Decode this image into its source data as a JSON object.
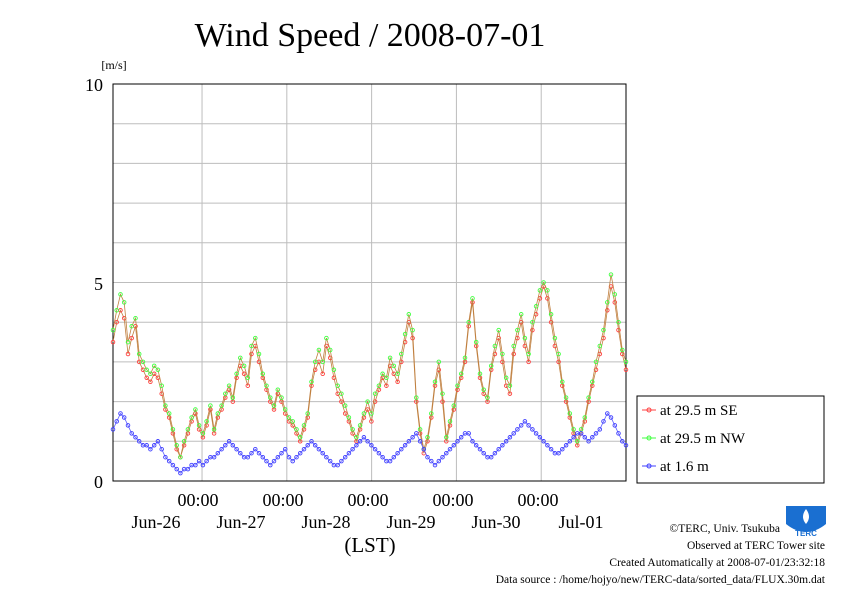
{
  "chart_data": {
    "type": "line",
    "title": "Wind Speed / 2008-07-01",
    "ylabel": "[m/s]",
    "xlabel": "(LST)",
    "ylim": [
      0,
      10
    ],
    "yticks": [
      "0",
      "5",
      "10"
    ],
    "xticks": [
      "00:00",
      "00:00",
      "00:00",
      "00:00",
      "00:00"
    ],
    "x_day_labels": [
      "Jun-26",
      "Jun-27",
      "Jun-28",
      "Jun-29",
      "Jun-30",
      "Jul-01"
    ],
    "x_range_days": [
      -1.05,
      5.0
    ],
    "grid": true,
    "legend_position": "bottom-right, outside plot",
    "x_unit": "days from 2008-06-26 00:00 LST (hourly samples)",
    "series": [
      {
        "name": "at 29.5 m SE",
        "color": "#ff4040",
        "values": [
          3.5,
          4.0,
          4.3,
          4.1,
          3.2,
          3.6,
          3.9,
          3.0,
          2.8,
          2.6,
          2.5,
          2.7,
          2.6,
          2.2,
          1.8,
          1.6,
          1.2,
          0.8,
          0.6,
          0.9,
          1.2,
          1.5,
          1.7,
          1.3,
          1.1,
          1.4,
          1.8,
          1.2,
          1.6,
          1.8,
          2.1,
          2.3,
          2.0,
          2.6,
          2.9,
          2.7,
          2.4,
          3.2,
          3.4,
          3.0,
          2.6,
          2.3,
          2.0,
          1.8,
          2.2,
          2.0,
          1.7,
          1.5,
          1.4,
          1.2,
          1.0,
          1.3,
          1.6,
          2.4,
          2.8,
          3.0,
          2.7,
          3.4,
          3.1,
          2.6,
          2.2,
          2.0,
          1.7,
          1.5,
          1.2,
          1.0,
          1.3,
          1.6,
          1.8,
          1.5,
          2.0,
          2.3,
          2.6,
          2.4,
          2.9,
          2.7,
          2.5,
          3.0,
          3.5,
          4.0,
          3.6,
          2.0,
          1.2,
          0.7,
          1.0,
          1.6,
          2.4,
          2.8,
          2.0,
          1.0,
          1.4,
          1.8,
          2.3,
          2.6,
          3.0,
          3.9,
          4.5,
          3.4,
          2.6,
          2.2,
          2.0,
          2.8,
          3.2,
          3.6,
          3.0,
          2.4,
          2.2,
          3.2,
          3.6,
          4.0,
          3.4,
          3.0,
          3.8,
          4.2,
          4.6,
          4.9,
          4.6,
          4.0,
          3.4,
          3.0,
          2.4,
          2.0,
          1.6,
          1.2,
          0.9,
          1.2,
          1.5,
          2.0,
          2.4,
          2.8,
          3.2,
          3.6,
          4.3,
          4.9,
          4.5,
          3.8,
          3.2,
          2.8
        ]
      },
      {
        "name": "at 29.5 m NW",
        "color": "#40ff40",
        "values": [
          3.8,
          4.3,
          4.7,
          4.5,
          3.5,
          3.9,
          4.1,
          3.2,
          3.0,
          2.8,
          2.7,
          2.9,
          2.8,
          2.4,
          1.9,
          1.7,
          1.3,
          0.9,
          0.6,
          1.0,
          1.3,
          1.6,
          1.8,
          1.4,
          1.2,
          1.5,
          1.9,
          1.3,
          1.7,
          1.9,
          2.2,
          2.4,
          2.1,
          2.7,
          3.1,
          2.9,
          2.6,
          3.4,
          3.6,
          3.2,
          2.7,
          2.4,
          2.1,
          1.9,
          2.3,
          2.1,
          1.8,
          1.6,
          1.5,
          1.3,
          1.1,
          1.4,
          1.7,
          2.5,
          3.0,
          3.3,
          3.0,
          3.6,
          3.3,
          2.8,
          2.4,
          2.2,
          1.9,
          1.6,
          1.3,
          1.1,
          1.4,
          1.7,
          2.0,
          1.7,
          2.2,
          2.4,
          2.7,
          2.6,
          3.1,
          2.9,
          2.7,
          3.2,
          3.7,
          4.2,
          3.8,
          2.1,
          1.3,
          0.8,
          1.1,
          1.7,
          2.5,
          3.0,
          2.2,
          1.1,
          1.5,
          1.9,
          2.4,
          2.7,
          3.1,
          4.0,
          4.6,
          3.5,
          2.7,
          2.3,
          2.1,
          2.9,
          3.4,
          3.8,
          3.2,
          2.6,
          2.4,
          3.4,
          3.8,
          4.2,
          3.6,
          3.2,
          4.0,
          4.4,
          4.8,
          5.0,
          4.8,
          4.2,
          3.6,
          3.2,
          2.5,
          2.1,
          1.7,
          1.3,
          1.0,
          1.3,
          1.6,
          2.1,
          2.5,
          3.0,
          3.4,
          3.8,
          4.5,
          5.2,
          4.7,
          4.0,
          3.3,
          3.0
        ]
      },
      {
        "name": "at 1.6 m",
        "color": "#4040ff",
        "values": [
          1.3,
          1.5,
          1.7,
          1.6,
          1.4,
          1.2,
          1.1,
          1.0,
          0.9,
          0.9,
          0.8,
          0.9,
          1.0,
          0.8,
          0.6,
          0.5,
          0.4,
          0.3,
          0.2,
          0.3,
          0.3,
          0.4,
          0.4,
          0.5,
          0.4,
          0.5,
          0.6,
          0.6,
          0.7,
          0.8,
          0.9,
          1.0,
          0.9,
          0.8,
          0.7,
          0.6,
          0.6,
          0.7,
          0.8,
          0.7,
          0.6,
          0.5,
          0.4,
          0.5,
          0.6,
          0.7,
          0.8,
          0.6,
          0.5,
          0.6,
          0.7,
          0.8,
          0.9,
          1.0,
          0.9,
          0.8,
          0.7,
          0.6,
          0.5,
          0.4,
          0.4,
          0.5,
          0.6,
          0.7,
          0.8,
          0.9,
          1.0,
          1.1,
          1.0,
          0.9,
          0.8,
          0.7,
          0.6,
          0.5,
          0.5,
          0.6,
          0.7,
          0.8,
          0.9,
          1.0,
          1.1,
          1.2,
          1.0,
          0.8,
          0.6,
          0.5,
          0.4,
          0.5,
          0.6,
          0.7,
          0.8,
          0.9,
          1.0,
          1.1,
          1.2,
          1.2,
          1.0,
          0.9,
          0.8,
          0.7,
          0.6,
          0.6,
          0.7,
          0.8,
          0.9,
          1.0,
          1.1,
          1.2,
          1.3,
          1.4,
          1.5,
          1.4,
          1.3,
          1.2,
          1.1,
          1.0,
          0.9,
          0.8,
          0.7,
          0.7,
          0.8,
          0.9,
          1.0,
          1.1,
          1.2,
          1.2,
          1.1,
          1.0,
          1.1,
          1.2,
          1.3,
          1.5,
          1.7,
          1.6,
          1.4,
          1.2,
          1.0,
          0.9
        ]
      }
    ]
  },
  "footer": {
    "copyright": "©TERC, Univ. Tsukuba",
    "observed": "Observed at TERC Tower site",
    "created": "Created Automatically at 2008-07-01/23:32:18",
    "source": "Data source : /home/hojyo/new/TERC-data/sorted_data/FLUX.30m.dat"
  },
  "logo": {
    "text": "TERC",
    "color": "#1a6fd1"
  }
}
